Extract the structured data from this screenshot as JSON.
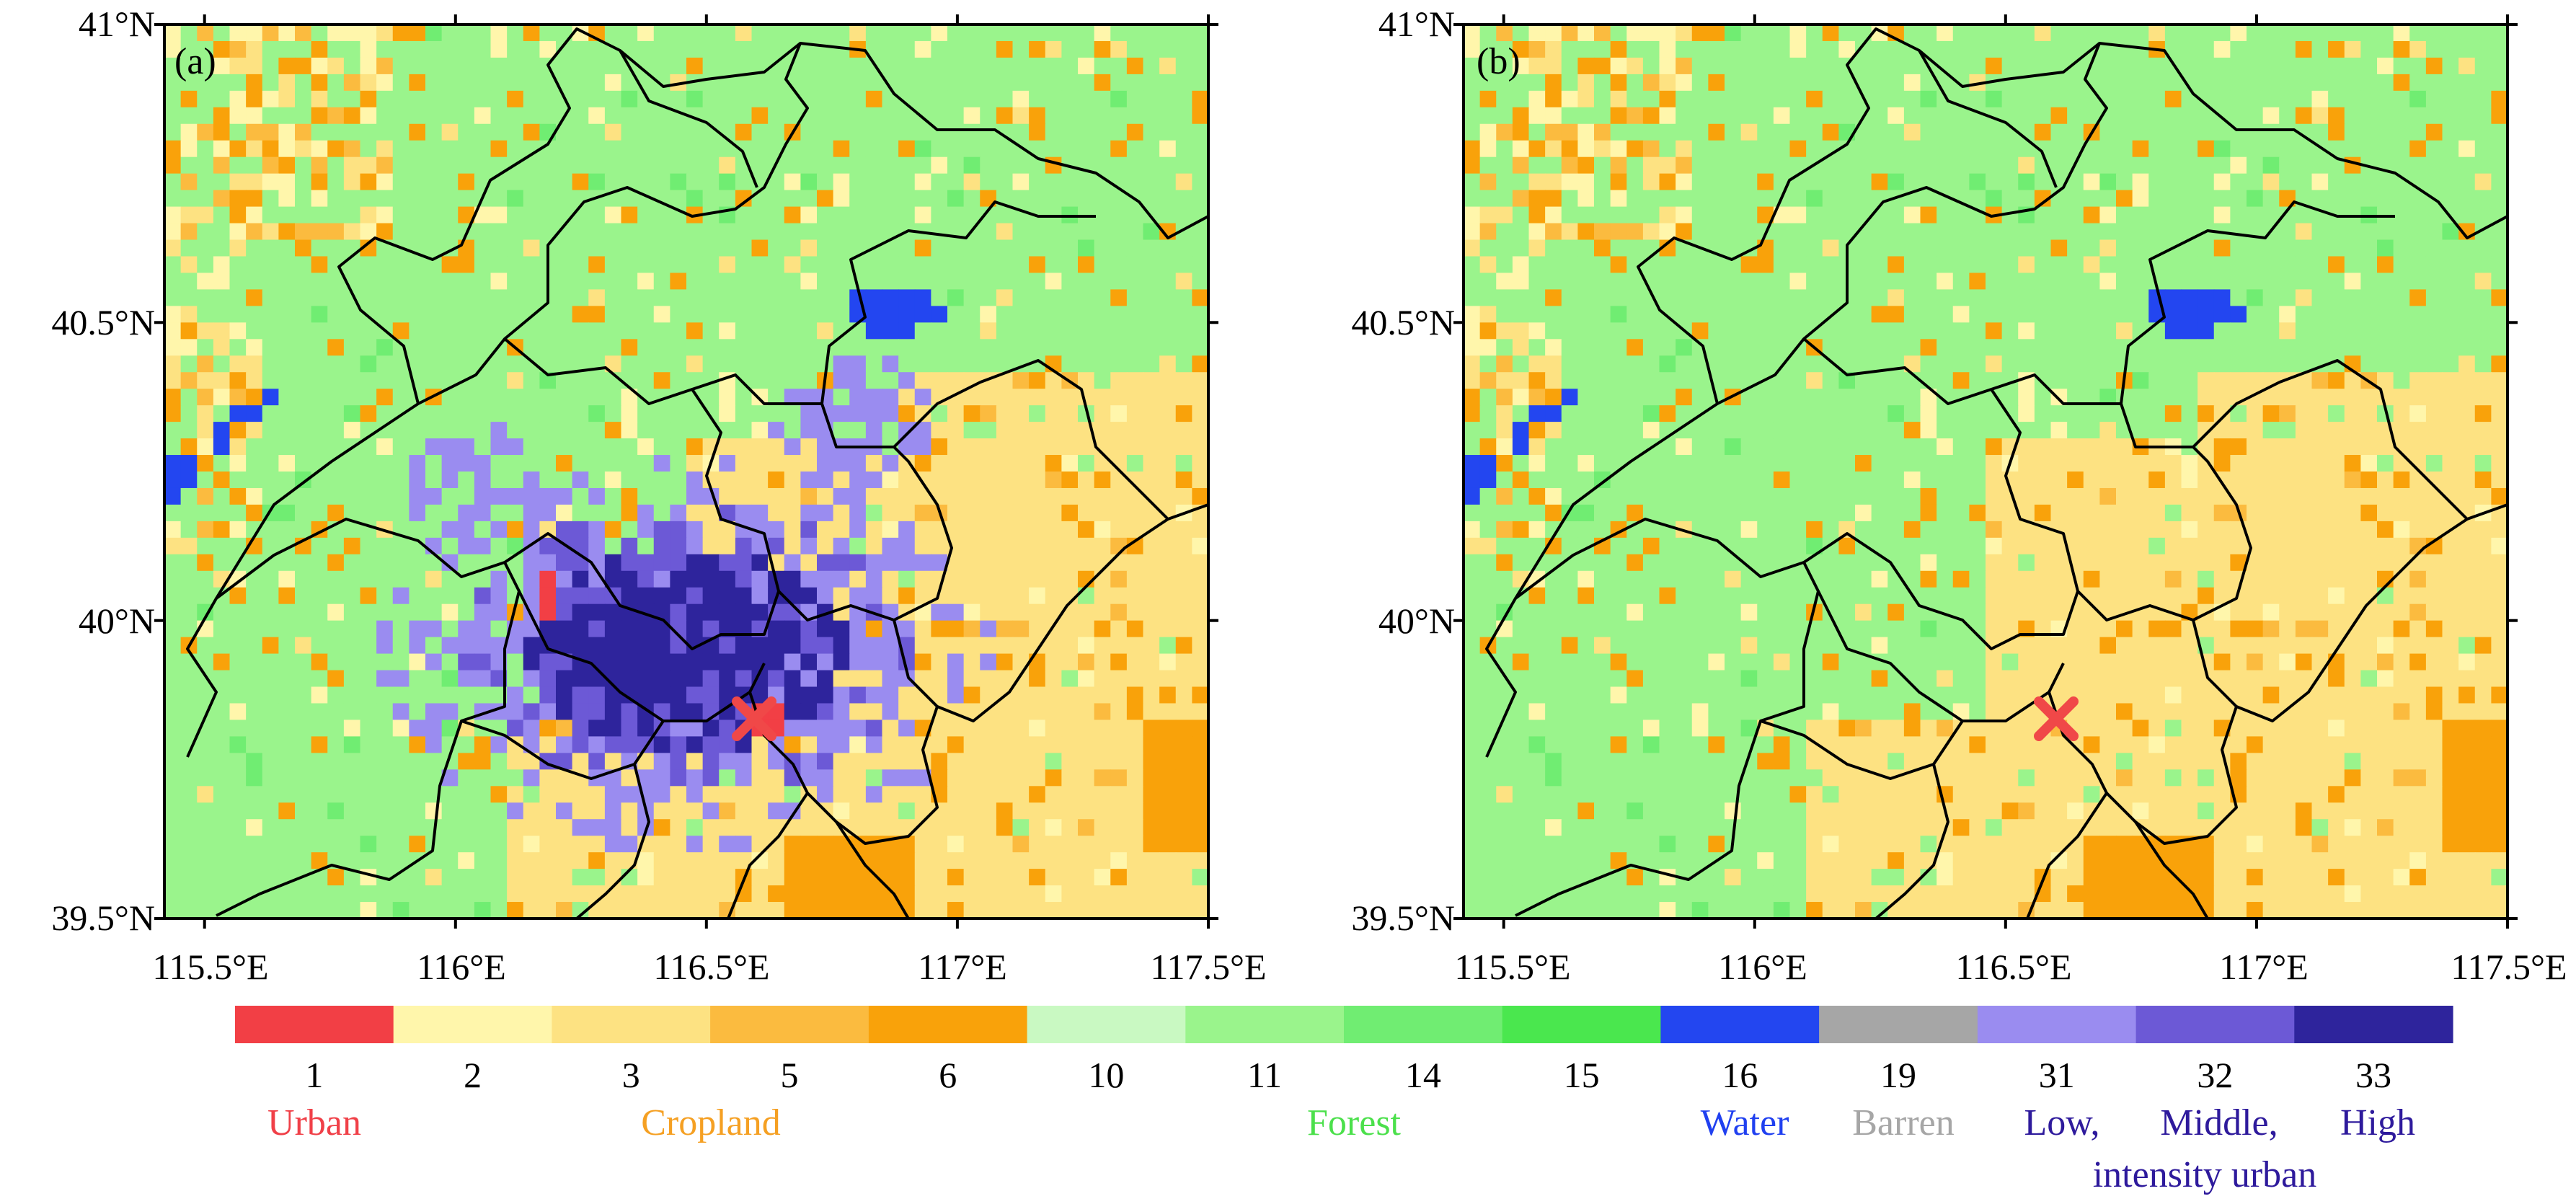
{
  "figure": {
    "panels": [
      {
        "tag": "(a)",
        "description_key": "with_urban"
      },
      {
        "tag": "(b)",
        "description_key": "no_urban"
      }
    ],
    "lat_ticks": [
      "39.5°N",
      "40°N",
      "40.5°N",
      "41°N"
    ],
    "lon_ticks": [
      "115.5°E",
      "116°E",
      "116.5°E",
      "117°E",
      "117.5°E"
    ],
    "lat_range": [
      39.5,
      41.0
    ],
    "lon_range_a": [
      115.42,
      117.5
    ],
    "lon_range_b": [
      115.42,
      117.5
    ],
    "marker": {
      "lon": 116.58,
      "lat": 39.84,
      "symbol": "×",
      "color": "#f04848"
    }
  },
  "colorbar": {
    "classes": [
      {
        "code": "1",
        "color": "#f23f45"
      },
      {
        "code": "2",
        "color": "#fff6ab"
      },
      {
        "code": "3",
        "color": "#fde282"
      },
      {
        "code": "5",
        "color": "#fbbb3f"
      },
      {
        "code": "6",
        "color": "#f9a20a"
      },
      {
        "code": "10",
        "color": "#c9f9c2"
      },
      {
        "code": "11",
        "color": "#9af48c"
      },
      {
        "code": "14",
        "color": "#70ed72"
      },
      {
        "code": "15",
        "color": "#4ae74e"
      },
      {
        "code": "16",
        "color": "#2346f0"
      },
      {
        "code": "19",
        "color": "#a6a6a6"
      },
      {
        "code": "31",
        "color": "#9a8cf0"
      },
      {
        "code": "32",
        "color": "#6c59d6"
      },
      {
        "code": "33",
        "color": "#2e249c"
      }
    ],
    "categories": [
      {
        "label": "Urban",
        "color": "#f04048"
      },
      {
        "label": "Cropland",
        "color": "#f5a023"
      },
      {
        "label": "Forest",
        "color": "#4be04b"
      },
      {
        "label": "Water",
        "color": "#2040f0"
      },
      {
        "label": "Barren",
        "color": "#a6a6a6"
      },
      {
        "label": "Low,",
        "color": "#2e1a9c"
      },
      {
        "label": "Middle,",
        "color": "#2e1a9c"
      },
      {
        "label": "High",
        "color": "#2e1a9c"
      },
      {
        "label": "intensity urban",
        "color": "#2e1a9c"
      }
    ]
  }
}
